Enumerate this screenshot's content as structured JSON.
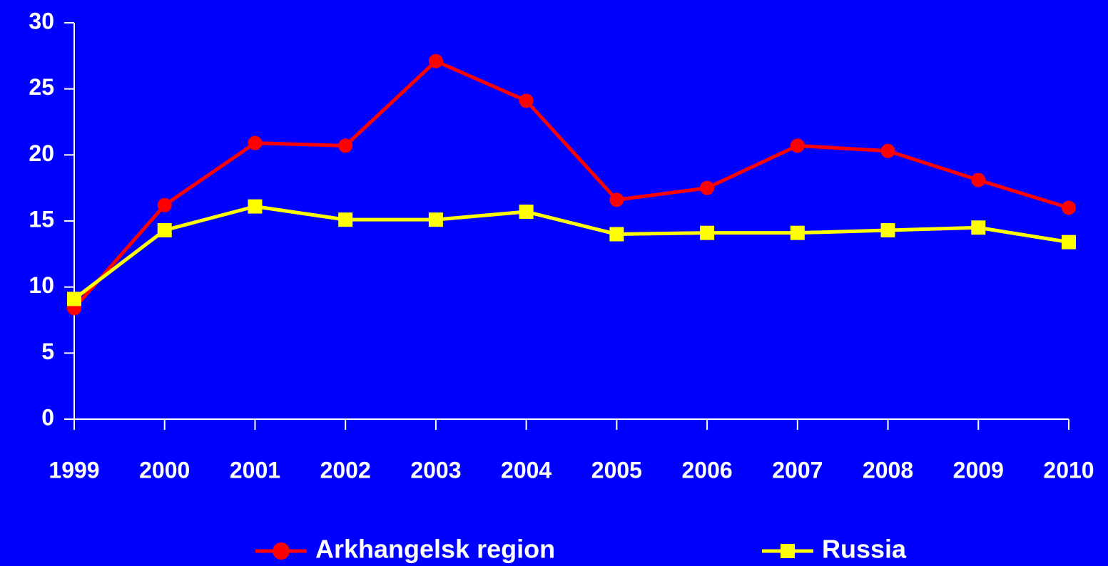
{
  "chart_data": {
    "type": "line",
    "categories": [
      "1999",
      "2000",
      "2001",
      "2002",
      "2003",
      "2004",
      "2005",
      "2006",
      "2007",
      "2008",
      "2009",
      "2010"
    ],
    "series": [
      {
        "name": "Arkhangelsk region",
        "color": "#ff0000",
        "marker": "circle",
        "values": [
          8.4,
          16.2,
          20.9,
          20.7,
          27.1,
          24.1,
          16.6,
          17.5,
          20.7,
          20.3,
          18.1,
          16.0
        ]
      },
      {
        "name": "Russia",
        "color": "#ffff00",
        "marker": "square",
        "values": [
          9.1,
          14.3,
          16.1,
          15.1,
          15.1,
          15.7,
          14.0,
          14.1,
          14.1,
          14.3,
          14.5,
          13.4
        ]
      }
    ],
    "ylim": [
      0,
      30
    ],
    "yticks": [
      0,
      5,
      10,
      15,
      20,
      25,
      30
    ],
    "grid": false,
    "legend": "bottom"
  }
}
